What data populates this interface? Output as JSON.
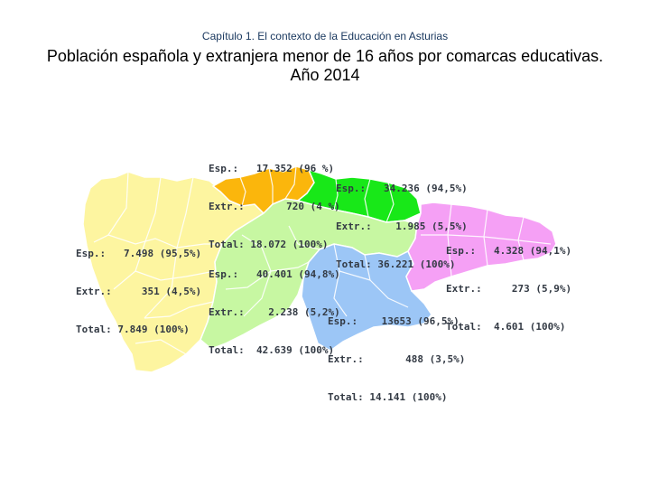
{
  "header": {
    "chapter": "Capítulo 1. El contexto de la Educación en Asturias",
    "title": "Población española y extranjera menor de 16 años por comarcas educativas. Año 2014"
  },
  "regions": [
    {
      "id": "occidente",
      "color": "#fdf5a0",
      "esp": "7.498 (95,5%)",
      "extr": "351 (4,5%)",
      "total": "7.849 (100%)"
    },
    {
      "id": "aviles",
      "color": "#fbb60c",
      "esp": "17.352 (96 %)",
      "extr": "720 (4 %)",
      "total": "18.072 (100%)"
    },
    {
      "id": "gijon",
      "color": "#18e818",
      "esp": "34.236 (94,5%)",
      "extr": "1.985 (5,5%)",
      "total": "36.221 (100%)"
    },
    {
      "id": "oviedo",
      "color": "#c7f7a2",
      "esp": "40.401 (94,8%)",
      "extr": "2.238 (5,2%)",
      "total": "42.639 (100%)"
    },
    {
      "id": "nalon-caudal",
      "color": "#9cc6f6",
      "esp": "13653 (96,5%)",
      "extr": "488 (3,5%)",
      "total": "14.141 (100%)"
    },
    {
      "id": "oriente",
      "color": "#f5a0f5",
      "esp": "4.328 (94,1%)",
      "extr": "273 (5,9%)",
      "total": "4.601 (100%)"
    }
  ],
  "labels": {
    "esp": "Esp.:",
    "extr": "Extr.:",
    "total": "Total:"
  }
}
